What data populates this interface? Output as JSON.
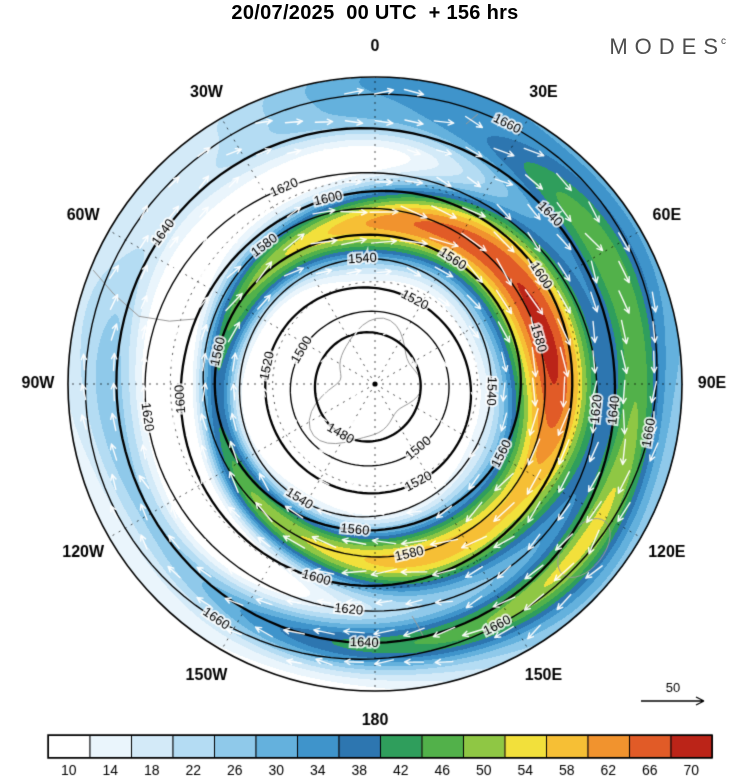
{
  "chart_data": {
    "type": "heatmap",
    "subtype": "south-polar-stereographic-weather-map",
    "title": "20/07/2025  00 UTC  + 156 hrs",
    "logo": {
      "text": "MODES",
      "mark": "c"
    },
    "longitude_labels": [
      "0",
      "30E",
      "60E",
      "90E",
      "120E",
      "150E",
      "180",
      "150W",
      "120W",
      "90W",
      "60W",
      "30W"
    ],
    "contour_variable_levels": [
      1480,
      1500,
      1520,
      1540,
      1560,
      1580,
      1600,
      1620,
      1640,
      1660
    ],
    "contours": [
      {
        "level": 1480,
        "radius": 0.175,
        "label_azimuths": [
          210
        ]
      },
      {
        "level": 1500,
        "radius": 0.255,
        "label_azimuths": [
          300,
          140
        ]
      },
      {
        "level": 1520,
        "radius": 0.335,
        "label_azimuths": [
          282,
          152,
          28
        ]
      },
      {
        "level": 1540,
        "radius": 0.415,
        "label_azimuths": [
          357,
          92,
          212
        ]
      },
      {
        "level": 1560,
        "radius": 0.49,
        "label_azimuths": [
          33,
          117,
          186,
          283
        ]
      },
      {
        "level": 1580,
        "radius": 0.562,
        "label_azimuths": [
          323,
          167,
          74
        ]
      },
      {
        "level": 1600,
        "radius": 0.64,
        "label_azimuths": [
          347,
          57,
          196,
          266
        ]
      },
      {
        "level": 1620,
        "radius": 0.725,
        "label_azimuths": [
          336,
          96,
          186,
          262
        ]
      },
      {
        "level": 1640,
        "radius": 0.825,
        "label_azimuths": [
          306,
          96,
          182,
          46
        ]
      },
      {
        "level": 1660,
        "radius": 0.925,
        "label_azimuths": [
          27,
          100,
          153,
          214
        ]
      }
    ],
    "colorbar": {
      "tick_labels": [
        10,
        14,
        18,
        22,
        26,
        30,
        34,
        38,
        42,
        46,
        50,
        54,
        58,
        62,
        66,
        70
      ],
      "colors": [
        "#ffffff",
        "#eaf5fc",
        "#d3eaf8",
        "#b4dcf3",
        "#8fc9ea",
        "#64b1dd",
        "#3f94cb",
        "#2d76b0",
        "#2f9e5c",
        "#52b14a",
        "#8fc744",
        "#f2e03b",
        "#f6bf35",
        "#f1932e",
        "#e15b27",
        "#bb2418"
      ]
    },
    "wind": {
      "reference_label": "50",
      "arrow_color": "#ffffff",
      "rotation": "clockwise"
    },
    "wind_speed_field_model": {
      "background": 6,
      "jet_amp_base": 52,
      "jet_amp_wave1": 12,
      "jet_amp_phase1": 75,
      "jet_amp_wave2": 3,
      "jet_amp_phase2": 20,
      "jet_radius_base": 0.55,
      "jet_radius_wave": 0.04,
      "jet_radius_phase": 120,
      "jet_width_base": 0.12,
      "jet_width_wave": 0.05,
      "jet_width_phase": 80,
      "outer_arc_amp_base": 26,
      "outer_arc_amp_wave": 14,
      "outer_arc_phase": 130,
      "outer_arc_radius": 0.85,
      "outer_arc_width": 0.09,
      "edge_amp_base": 16,
      "edge_amp_wave": 10,
      "edge_phase": 40,
      "edge_width": 0.13
    }
  }
}
